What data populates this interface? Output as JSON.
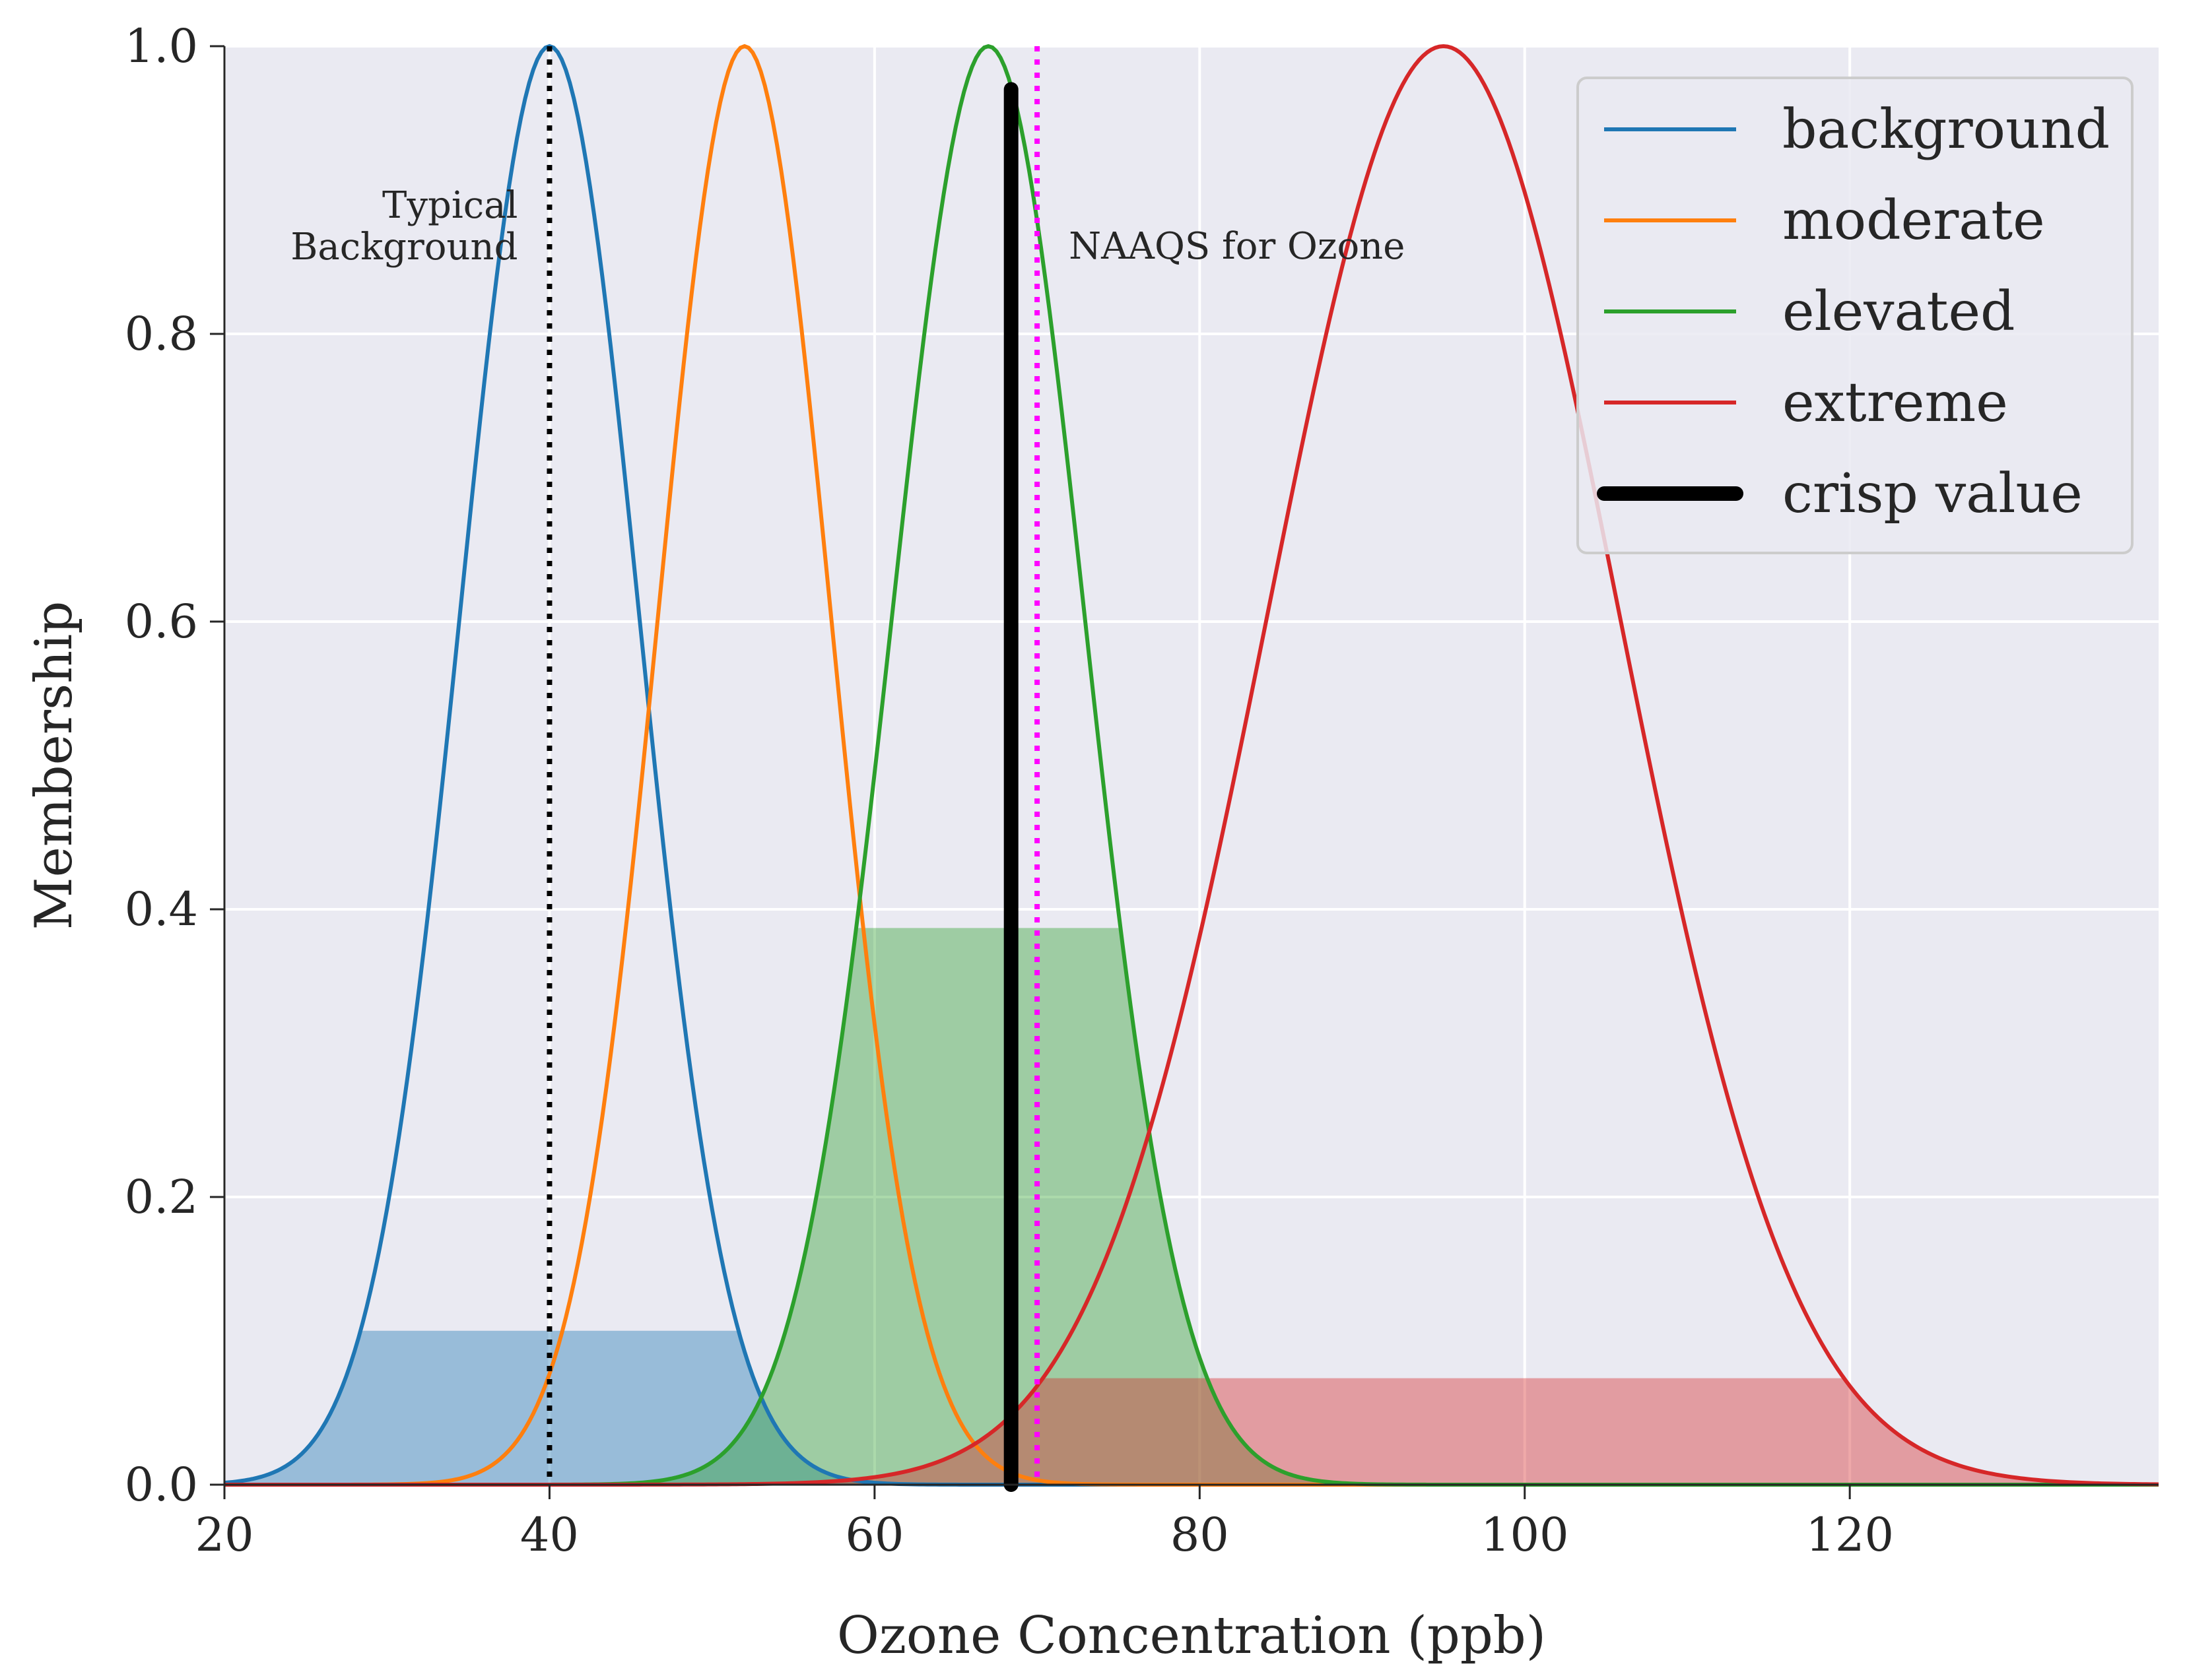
{
  "chart_data": {
    "type": "line",
    "xlabel": "Ozone Concentration (ppb)",
    "ylabel": "Membership",
    "xlim": [
      20,
      139
    ],
    "ylim": [
      0,
      1
    ],
    "xticks": [
      20,
      40,
      60,
      80,
      100,
      120
    ],
    "yticks": [
      0.0,
      0.2,
      0.4,
      0.6,
      0.8,
      1.0
    ],
    "grid": true,
    "legend_position": "top-right",
    "series": [
      {
        "name": "background",
        "color": "#1f77b4",
        "mean": 40,
        "sigma": 5.5,
        "clip_level": 0.107,
        "clip_fill": "#1f77b4"
      },
      {
        "name": "moderate",
        "color": "#ff7f0e",
        "mean": 52,
        "sigma": 5.3
      },
      {
        "name": "elevated",
        "color": "#2ca02c",
        "mean": 67,
        "sigma": 5.9,
        "clip_level": 0.387,
        "clip_fill": "#2ca02c"
      },
      {
        "name": "extreme",
        "color": "#d62728",
        "mean": 95,
        "sigma": 10.8,
        "clip_level": 0.074,
        "clip_fill": "#d62728"
      }
    ],
    "crisp_value": {
      "name": "crisp value",
      "x": 68.4,
      "top": 0.97,
      "color": "#000000"
    },
    "annotations": [
      {
        "lines": [
          "Typical",
          "Background"
        ],
        "x": 40,
        "anchor": "end",
        "color": "#000000"
      },
      {
        "lines": [
          "NAAQS for Ozone"
        ],
        "x": 70,
        "anchor": "start",
        "color": "#ff00ff"
      }
    ]
  }
}
